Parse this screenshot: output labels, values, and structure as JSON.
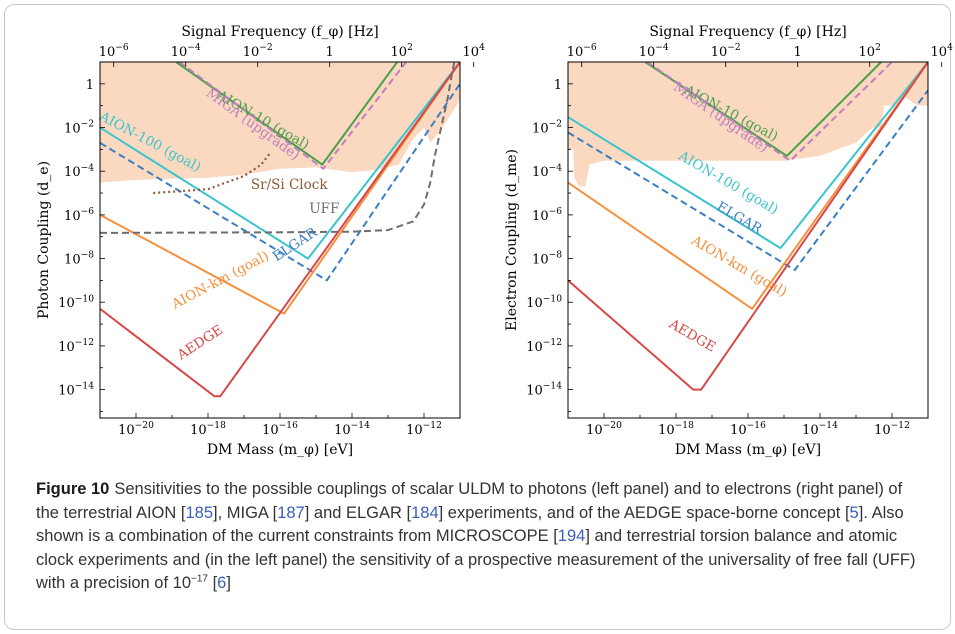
{
  "figure": {
    "label": "Figure 10",
    "caption_parts": [
      {
        "t": "Sensitivities to the possible couplings of scalar ULDM to photons (left panel) and to electrons (right panel) of the terrestrial AION ["
      },
      {
        "t": "185",
        "ref": true
      },
      {
        "t": "], MIGA ["
      },
      {
        "t": "187",
        "ref": true
      },
      {
        "t": "] and ELGAR ["
      },
      {
        "t": "184",
        "ref": true
      },
      {
        "t": "] experiments, and of the AEDGE space-borne concept ["
      },
      {
        "t": "5",
        "ref": true
      },
      {
        "t": "]. Also shown is a combination of the current constraints from MICROSCOPE ["
      },
      {
        "t": "194",
        "ref": true
      },
      {
        "t": "] and terrestrial torsion balance and atomic clock experiments and (in the left panel) the sensitivity of a prospective measurement of the universality of free fall (UFF) with a precision of 10"
      },
      {
        "t": "−17",
        "sup": true
      },
      {
        "t": " ["
      },
      {
        "t": "6",
        "ref": true
      },
      {
        "t": "]"
      }
    ]
  },
  "colors": {
    "aion10": "#4aa04a",
    "miga": "#c07fc0",
    "aion100": "#3cc4cc",
    "elgar": "#3b7fc4",
    "aionkm": "#f5903c",
    "aedge": "#d84848",
    "uff": "#6e6e6e",
    "clock": "#8b5a3c",
    "excluded_fill": "#fbd8c0"
  },
  "chart_data": [
    {
      "type": "line",
      "panel": "left",
      "xlabel": "DM Mass (m_φ) [eV]",
      "ylabel": "Photon Coupling (d_e)",
      "top_xlabel": "Signal Frequency (f_φ) [Hz]",
      "x_scale": "log",
      "y_scale": "log",
      "xlim": [
        1e-21,
        1e-11
      ],
      "ylim": [
        5e-16,
        10
      ],
      "x_ticks": [
        {
          "v": 1e-20,
          "b": "10",
          "e": "−20"
        },
        {
          "v": 1e-18,
          "b": "10",
          "e": "−18"
        },
        {
          "v": 1e-16,
          "b": "10",
          "e": "−16"
        },
        {
          "v": 1e-14,
          "b": "10",
          "e": "−14"
        },
        {
          "v": 1e-12,
          "b": "10",
          "e": "−12"
        }
      ],
      "y_ticks": [
        {
          "v": 1,
          "b": "1",
          "e": ""
        },
        {
          "v": 0.01,
          "b": "10",
          "e": "−2"
        },
        {
          "v": 0.0001,
          "b": "10",
          "e": "−4"
        },
        {
          "v": 1e-06,
          "b": "10",
          "e": "−6"
        },
        {
          "v": 1e-08,
          "b": "10",
          "e": "−8"
        },
        {
          "v": 1e-10,
          "b": "10",
          "e": "−10"
        },
        {
          "v": 1e-12,
          "b": "10",
          "e": "−12"
        },
        {
          "v": 1e-14,
          "b": "10",
          "e": "−14"
        }
      ],
      "top_ticks": [
        {
          "x": 2.4e-21,
          "b": "10",
          "e": "−6"
        },
        {
          "x": 2.4e-19,
          "b": "10",
          "e": "−4"
        },
        {
          "x": 2.4e-17,
          "b": "10",
          "e": "−2"
        },
        {
          "x": 2.4e-15,
          "b": "1",
          "e": ""
        },
        {
          "x": 2.4e-13,
          "b": "10",
          "e": "2"
        },
        {
          "x": 2.4e-11,
          "b": "10",
          "e": "4"
        }
      ],
      "region": {
        "name": "Sr/Si Clock constraints",
        "boundary": [
          [
            1e-21,
            3e-05
          ],
          [
            1e-20,
            4e-05
          ],
          [
            1e-19,
            4.5e-05
          ],
          [
            1e-18,
            5e-05
          ],
          [
            1e-17,
            7e-05
          ],
          [
            1e-16,
            0.00013
          ],
          [
            1e-15,
            0.00015
          ],
          [
            1e-14,
            9e-05
          ],
          [
            5e-14,
            0.00012
          ],
          [
            2e-13,
            0.0002
          ],
          [
            5e-13,
            0.003
          ],
          [
            1e-12,
            0.01
          ],
          [
            1.5e-12,
            0.002
          ],
          [
            3e-12,
            0.008
          ],
          [
            8e-12,
            0.1
          ],
          [
            1e-11,
            0.2
          ]
        ]
      },
      "series": [
        {
          "name": "AION-10 (goal)",
          "key": "aion10",
          "dash": "solid",
          "points": [
            [
              1.3e-19,
              10
            ],
            [
              1.5e-15,
              0.0002
            ],
            [
              1.8e-13,
              10
            ]
          ]
        },
        {
          "name": "MIGA (upgrade)",
          "key": "miga",
          "dash": "dashed",
          "points": [
            [
              1.6e-19,
              10
            ],
            [
              1.6e-15,
              0.00013
            ],
            [
              3.2e-13,
              10
            ]
          ]
        },
        {
          "name": "AION-100 (goal)",
          "key": "aion100",
          "dash": "solid",
          "points": [
            [
              1e-21,
              0.01
            ],
            [
              6e-16,
              1e-08
            ],
            [
              1e-11,
              10
            ]
          ]
        },
        {
          "name": "ELGAR",
          "key": "elgar",
          "dash": "dashed",
          "points": [
            [
              1e-21,
              0.002
            ],
            [
              2e-15,
              1e-09
            ],
            [
              1e-11,
              1
            ]
          ]
        },
        {
          "name": "AION-km (goal)",
          "key": "aionkm",
          "dash": "solid",
          "points": [
            [
              1e-21,
              1e-06
            ],
            [
              1.3e-16,
              3e-11
            ],
            [
              1e-11,
              10
            ]
          ]
        },
        {
          "name": "AEDGE",
          "key": "aedge",
          "dash": "solid",
          "points": [
            [
              1e-21,
              5e-11
            ],
            [
              1.5e-18,
              5e-15
            ],
            [
              2.2e-18,
              5e-15
            ],
            [
              1e-11,
              10
            ]
          ]
        },
        {
          "name": "UFF",
          "key": "uff",
          "dash": "dashed",
          "points": [
            [
              1e-21,
              1.5e-07
            ],
            [
              1e-16,
              1.6e-07
            ],
            [
              1e-14,
              1.7e-07
            ],
            [
              1e-13,
              2e-07
            ],
            [
              5e-13,
              5e-07
            ],
            [
              1e-12,
              3e-06
            ],
            [
              1.5e-12,
              3e-05
            ],
            [
              2e-12,
              0.0005
            ],
            [
              3e-12,
              0.01
            ],
            [
              4.5e-12,
              0.2
            ],
            [
              6e-12,
              3
            ],
            [
              7e-12,
              10
            ]
          ]
        },
        {
          "name": "Sr/Si Clock",
          "key": "clock",
          "dash": "dotted",
          "points": [
            [
              3e-20,
              1e-05
            ],
            [
              1e-18,
              1.5e-05
            ],
            [
              1e-17,
              6e-05
            ],
            [
              3e-17,
              0.0002
            ],
            [
              5e-17,
              0.0006
            ]
          ]
        }
      ],
      "labels": [
        {
          "text": "AION-10 (goal)",
          "key": "aion10",
          "x": 3e-17,
          "y": 0.015,
          "rot": 30
        },
        {
          "text": "MIGA (upgrade)",
          "key": "miga",
          "x": 1.5e-17,
          "y": 0.01,
          "rot": 36
        },
        {
          "text": "AION-100 (goal)",
          "key": "aion100",
          "x": 2.2e-20,
          "y": 0.0015,
          "rot": 28
        },
        {
          "text": "Sr/Si Clock",
          "key": "clock",
          "x": 1.8e-16,
          "y": 1.5e-05,
          "rot": 0
        },
        {
          "text": "UFF",
          "key": "uff",
          "x": 1.7e-15,
          "y": 1.2e-06,
          "rot": 0
        },
        {
          "text": "ELGAR",
          "key": "elgar",
          "x": 3e-16,
          "y": 3e-08,
          "rot": -33
        },
        {
          "text": "AION-km (goal)",
          "key": "aionkm",
          "x": 2.5e-18,
          "y": 7e-10,
          "rot": -28
        },
        {
          "text": "AEDGE",
          "key": "aedge",
          "x": 7e-19,
          "y": 1e-12,
          "rot": -33
        }
      ]
    },
    {
      "type": "line",
      "panel": "right",
      "xlabel": "DM Mass (m_φ) [eV]",
      "ylabel": "Electron Coupling (d_me)",
      "top_xlabel": "Signal Frequency (f_φ) [Hz]",
      "x_scale": "log",
      "y_scale": "log",
      "xlim": [
        1e-21,
        1e-11
      ],
      "ylim": [
        5e-16,
        10
      ],
      "x_ticks": [
        {
          "v": 1e-20,
          "b": "10",
          "e": "−20"
        },
        {
          "v": 1e-18,
          "b": "10",
          "e": "−18"
        },
        {
          "v": 1e-16,
          "b": "10",
          "e": "−16"
        },
        {
          "v": 1e-14,
          "b": "10",
          "e": "−14"
        },
        {
          "v": 1e-12,
          "b": "10",
          "e": "−12"
        }
      ],
      "y_ticks": [
        {
          "v": 1,
          "b": "1",
          "e": ""
        },
        {
          "v": 0.01,
          "b": "10",
          "e": "−2"
        },
        {
          "v": 0.0001,
          "b": "10",
          "e": "−4"
        },
        {
          "v": 1e-06,
          "b": "10",
          "e": "−6"
        },
        {
          "v": 1e-08,
          "b": "10",
          "e": "−8"
        },
        {
          "v": 1e-10,
          "b": "10",
          "e": "−10"
        },
        {
          "v": 1e-12,
          "b": "10",
          "e": "−12"
        },
        {
          "v": 1e-14,
          "b": "10",
          "e": "−14"
        }
      ],
      "top_ticks": [
        {
          "x": 2.4e-21,
          "b": "10",
          "e": "−6"
        },
        {
          "x": 2.4e-19,
          "b": "10",
          "e": "−4"
        },
        {
          "x": 2.4e-17,
          "b": "10",
          "e": "−2"
        },
        {
          "x": 2.4e-15,
          "b": "1",
          "e": ""
        },
        {
          "x": 2.4e-13,
          "b": "10",
          "e": "2"
        },
        {
          "x": 2.4e-11,
          "b": "10",
          "e": "4"
        }
      ],
      "region": {
        "name": "Torsion balance / clock constraints",
        "boundary": [
          [
            1e-21,
            0.001
          ],
          [
            1.4e-21,
            0.001
          ],
          [
            1.5e-21,
            5e-05
          ],
          [
            2e-21,
            2e-05
          ],
          [
            3e-21,
            2e-05
          ],
          [
            4e-21,
            0.0002
          ],
          [
            1e-20,
            0.0003
          ],
          [
            1e-19,
            0.0003
          ],
          [
            1e-18,
            0.0003
          ],
          [
            1e-17,
            0.0003
          ],
          [
            1e-16,
            0.0003
          ],
          [
            1e-15,
            0.0003
          ],
          [
            1e-14,
            0.0005
          ],
          [
            3e-14,
            0.001
          ],
          [
            1e-13,
            0.002
          ],
          [
            2e-13,
            0.006
          ],
          [
            3e-13,
            0.01
          ],
          [
            5e-13,
            0.01
          ],
          [
            6e-13,
            0.1
          ],
          [
            1e-12,
            0.1
          ],
          [
            2e-12,
            0.3
          ],
          [
            5e-12,
            0.1
          ],
          [
            1e-11,
            0.1
          ]
        ]
      },
      "series": [
        {
          "name": "AION-10 (goal)",
          "key": "aion10",
          "dash": "solid",
          "points": [
            [
              1.4e-19,
              10
            ],
            [
              1.2e-15,
              0.0005
            ],
            [
              5e-13,
              10
            ]
          ]
        },
        {
          "name": "MIGA (upgrade)",
          "key": "miga",
          "dash": "dashed",
          "points": [
            [
              1.6e-19,
              10
            ],
            [
              1.5e-15,
              0.0003
            ],
            [
              1e-12,
              10
            ]
          ]
        },
        {
          "name": "AION-100 (goal)",
          "key": "aion100",
          "dash": "solid",
          "points": [
            [
              1e-21,
              0.03
            ],
            [
              8e-16,
              3e-08
            ],
            [
              1e-11,
              10
            ]
          ]
        },
        {
          "name": "ELGAR",
          "key": "elgar",
          "dash": "dashed",
          "points": [
            [
              1e-21,
              0.006
            ],
            [
              2e-15,
              3e-09
            ],
            [
              1e-11,
              0.5
            ]
          ]
        },
        {
          "name": "AION-km (goal)",
          "key": "aionkm",
          "dash": "solid",
          "points": [
            [
              1e-21,
              3e-05
            ],
            [
              1.3e-16,
              5e-11
            ],
            [
              1e-11,
              10
            ]
          ]
        },
        {
          "name": "AEDGE",
          "key": "aedge",
          "dash": "solid",
          "points": [
            [
              1e-21,
              1e-09
            ],
            [
              3e-18,
              1e-14
            ],
            [
              5e-18,
              1e-14
            ],
            [
              1e-11,
              10
            ]
          ]
        }
      ],
      "labels": [
        {
          "text": "AION-10 (goal)",
          "key": "aion10",
          "x": 3e-17,
          "y": 0.03,
          "rot": 28
        },
        {
          "text": "MIGA (upgrade)",
          "key": "miga",
          "x": 1.5e-17,
          "y": 0.02,
          "rot": 35
        },
        {
          "text": "AION-100 (goal)",
          "key": "aion100",
          "x": 2.5e-17,
          "y": 2e-05,
          "rot": 30
        },
        {
          "text": "ELGAR",
          "key": "elgar",
          "x": 5e-17,
          "y": 5e-07,
          "rot": 30
        },
        {
          "text": "AION-km (goal)",
          "key": "aionkm",
          "x": 5e-17,
          "y": 3e-09,
          "rot": 30
        },
        {
          "text": "AEDGE",
          "key": "aedge",
          "x": 2.5e-18,
          "y": 2e-12,
          "rot": 30
        }
      ]
    }
  ]
}
